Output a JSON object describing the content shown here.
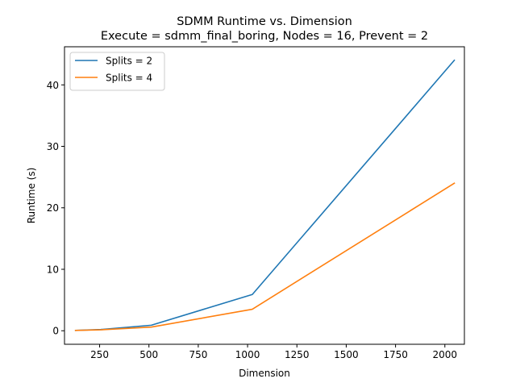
{
  "chart_data": {
    "type": "line",
    "title": "SDMM Runtime vs. Dimension",
    "subtitle": "Execute = sdmm_final_boring, Nodes = 16, Prevent = 2",
    "xlabel": "Dimension",
    "ylabel": "Runtime (s)",
    "xlim": [
      72,
      2099
    ],
    "ylim": [
      -2.2,
      46.2
    ],
    "x_ticks": [
      250,
      500,
      750,
      1000,
      1250,
      1500,
      1750,
      2000
    ],
    "y_ticks": [
      0,
      10,
      20,
      30,
      40
    ],
    "grid": false,
    "legend_position": "top-left",
    "series": [
      {
        "name": "Splits = 2",
        "color": "#1f77b4",
        "x": [
          128,
          256,
          512,
          1024,
          2048
        ],
        "y": [
          0.05,
          0.2,
          0.9,
          5.9,
          44.0
        ]
      },
      {
        "name": "Splits = 4",
        "color": "#ff7f0e",
        "x": [
          128,
          256,
          512,
          1024,
          2048
        ],
        "y": [
          0.05,
          0.15,
          0.6,
          3.5,
          24.0
        ]
      }
    ]
  }
}
